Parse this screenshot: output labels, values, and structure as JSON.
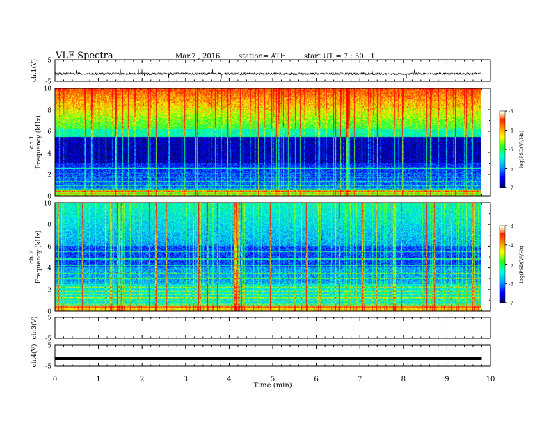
{
  "header": {
    "title": "VLF  Spectra",
    "date": "Mar.7  , 2016",
    "station": "station= ATH",
    "start_ut": "start  UT  =   7  : 50 : 1"
  },
  "colors": {
    "colormap": [
      "#000070",
      "#0000ff",
      "#00a0ff",
      "#00ffe0",
      "#20ff20",
      "#ffff00",
      "#ff8000",
      "#ff0000",
      "#ffffff"
    ]
  },
  "chart_data": [
    {
      "type": "line",
      "panel": "ch1-waveform",
      "ylabel": "ch.1(V)",
      "ylim": [
        -5,
        5
      ],
      "yticks": [
        "5",
        "-5"
      ],
      "baseline_v": -1.5
    },
    {
      "type": "heatmap",
      "panel": "ch1-spectrogram",
      "ylabel": "ch.1\nFrequency  (kHz)",
      "ylim": [
        0,
        10
      ],
      "yticks": [
        "0",
        "2",
        "4",
        "6",
        "8",
        "10"
      ],
      "colorbar": {
        "label": "log(PSD(V²/Hz)",
        "range": [
          -7,
          -3
        ],
        "ticks": [
          "-3",
          "-4",
          "-5",
          "-6",
          "-7"
        ]
      }
    },
    {
      "type": "heatmap",
      "panel": "ch2-spectrogram",
      "ylabel": "ch.2\nFrequency  (kHz)",
      "ylim": [
        0,
        10
      ],
      "yticks": [
        "0",
        "2",
        "4",
        "6",
        "8",
        "10"
      ],
      "colorbar": {
        "label": "log(PSD(V²/Hz)",
        "range": [
          -7,
          -3
        ],
        "ticks": [
          "-3",
          "-4",
          "-5",
          "-6",
          "-7"
        ]
      }
    },
    {
      "type": "line",
      "panel": "ch3-waveform",
      "ylabel": "ch.3(V)",
      "ylim": [
        -5,
        5
      ],
      "yticks": [
        "5",
        "-5"
      ]
    },
    {
      "type": "line",
      "panel": "ch4-waveform",
      "ylabel": "ch.4(V)",
      "ylim": [
        -5,
        5
      ],
      "yticks": [
        "5",
        "-5"
      ],
      "baseline_v": -1.5
    }
  ],
  "xaxis": {
    "label": "Time  (min)",
    "range": [
      0,
      10
    ],
    "data_end": 9.8,
    "ticks": [
      "0",
      "1",
      "2",
      "3",
      "4",
      "5",
      "6",
      "7",
      "8",
      "9",
      "10"
    ]
  }
}
